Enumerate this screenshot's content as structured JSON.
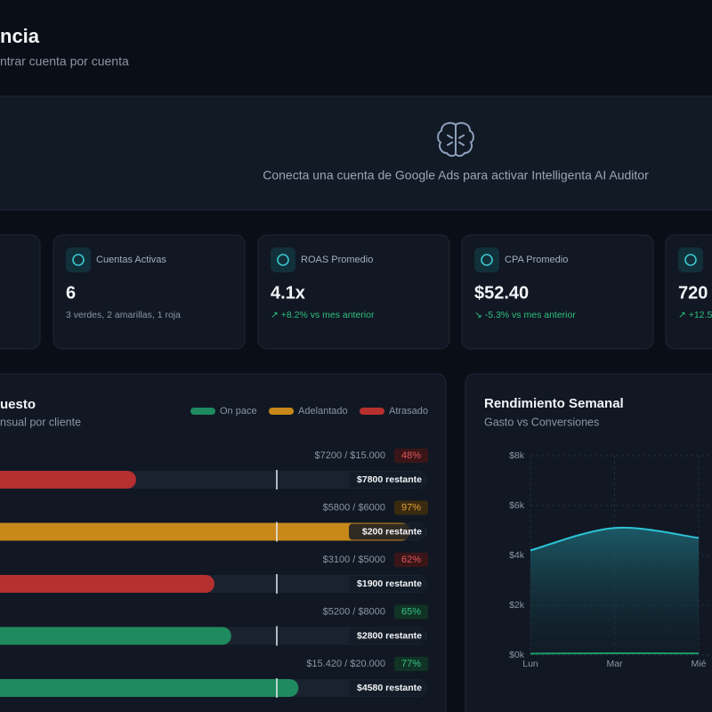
{
  "header": {
    "title": "ncia",
    "subtitle": "ntrar cuenta por cuenta"
  },
  "banner": {
    "message": "Conecta una cuenta de Google Ads para activar Intelligenta AI Auditor"
  },
  "kpis": [
    {
      "label": "Cuentas Activas",
      "value": "6",
      "detail": "3 verdes, 2 amarillas, 1 roja"
    },
    {
      "label": "ROAS Promedio",
      "value": "4.1x",
      "detail": "↗ +8.2% vs mes anterior"
    },
    {
      "label": "CPA Promedio",
      "value": "$52.40",
      "detail": "↘ -5.3% vs mes anterior"
    },
    {
      "label": "",
      "value": "720",
      "detail": "↗ +12.5"
    }
  ],
  "budget": {
    "title": "uesto",
    "subtitle": "nsual por cliente",
    "legend": [
      {
        "name": "On pace",
        "color": "#1f8a5e"
      },
      {
        "name": "Adelantado",
        "color": "#c8891a"
      },
      {
        "name": "Atrasado",
        "color": "#b5302f"
      }
    ],
    "rows": [
      {
        "spent": "$7200 / $15.000",
        "percent": 48,
        "percent_label": "48%",
        "remaining": "$7800 restante",
        "color": "#b5302f"
      },
      {
        "spent": "$5800 / $6000",
        "percent": 97,
        "percent_label": "97%",
        "remaining": "$200 restante",
        "color": "#c8891a"
      },
      {
        "spent": "$3100 / $5000",
        "percent": 62,
        "percent_label": "62%",
        "remaining": "$1900 restante",
        "color": "#b5302f"
      },
      {
        "spent": "$5200 / $8000",
        "percent": 65,
        "percent_label": "65%",
        "remaining": "$2800 restante",
        "color": "#1f8a5e"
      },
      {
        "spent": "$15.420 / $20.000",
        "percent": 77,
        "percent_label": "77%",
        "remaining": "$4580 restante",
        "color": "#1f8a5e"
      }
    ]
  },
  "chart_data": {
    "type": "area",
    "title": "Rendimiento Semanal",
    "subtitle": "Gasto vs Conversiones",
    "categories": [
      "Lun",
      "Mar",
      "Mié"
    ],
    "series": [
      {
        "color": "#2cc3d6",
        "values": [
          4200,
          5100,
          4700
        ]
      },
      {
        "color": "#1f9a6a",
        "values": [
          60,
          70,
          65
        ]
      }
    ],
    "ylim": [
      0,
      8000
    ],
    "yticks": [
      {
        "value": 0,
        "label": "$0k"
      },
      {
        "value": 2000,
        "label": "$2k"
      },
      {
        "value": 4000,
        "label": "$4k"
      },
      {
        "value": 6000,
        "label": "$6k"
      },
      {
        "value": 8000,
        "label": "$8k"
      }
    ],
    "grid": true
  }
}
